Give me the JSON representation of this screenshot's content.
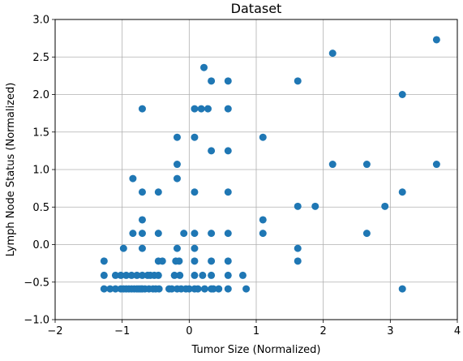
{
  "chart_data": {
    "type": "scatter",
    "title": "Dataset",
    "xlabel": "Tumor Size (Normalized)",
    "ylabel": "Lymph Node Status (Normalized)",
    "xlim": [
      -2,
      4
    ],
    "ylim": [
      -1.0,
      3.0
    ],
    "x_ticks": [
      -2,
      -1,
      0,
      1,
      2,
      3,
      4
    ],
    "x_tick_labels": [
      "−2",
      "−1",
      "0",
      "1",
      "2",
      "3",
      "4"
    ],
    "y_ticks": [
      -1.0,
      -0.5,
      0.0,
      0.5,
      1.0,
      1.5,
      2.0,
      2.5,
      3.0
    ],
    "y_tick_labels": [
      "−1.0",
      "−0.5",
      "0.0",
      "0.5",
      "1.0",
      "1.5",
      "2.0",
      "2.5",
      "3.0"
    ],
    "grid": true,
    "color": "#1f77b4",
    "series": [
      {
        "points": [
          [
            -1.27,
            -0.22
          ],
          [
            -1.27,
            -0.41
          ],
          [
            -1.27,
            -0.59
          ],
          [
            -1.18,
            -0.59
          ],
          [
            -1.1,
            -0.59
          ],
          [
            -1.1,
            -0.41
          ],
          [
            -1.02,
            -0.59
          ],
          [
            -1.02,
            -0.41
          ],
          [
            -0.98,
            -0.05
          ],
          [
            -0.98,
            -0.59
          ],
          [
            -0.94,
            -0.59
          ],
          [
            -0.94,
            -0.41
          ],
          [
            -0.9,
            -0.59
          ],
          [
            -0.86,
            -0.59
          ],
          [
            -0.86,
            -0.41
          ],
          [
            -0.84,
            0.88
          ],
          [
            -0.84,
            0.15
          ],
          [
            -0.82,
            -0.59
          ],
          [
            -0.78,
            -0.59
          ],
          [
            -0.78,
            -0.41
          ],
          [
            -0.75,
            -0.59
          ],
          [
            -0.72,
            -0.59
          ],
          [
            -0.7,
            1.81
          ],
          [
            -0.7,
            0.7
          ],
          [
            -0.7,
            0.33
          ],
          [
            -0.7,
            0.15
          ],
          [
            -0.7,
            -0.05
          ],
          [
            -0.7,
            -0.41
          ],
          [
            -0.7,
            -0.59
          ],
          [
            -0.66,
            -0.59
          ],
          [
            -0.62,
            -0.41
          ],
          [
            -0.6,
            -0.59
          ],
          [
            -0.58,
            -0.41
          ],
          [
            -0.54,
            -0.59
          ],
          [
            -0.52,
            -0.41
          ],
          [
            -0.5,
            -0.59
          ],
          [
            -0.46,
            0.7
          ],
          [
            -0.46,
            0.15
          ],
          [
            -0.46,
            -0.22
          ],
          [
            -0.46,
            -0.41
          ],
          [
            -0.45,
            -0.59
          ],
          [
            -0.4,
            -0.22
          ],
          [
            -0.3,
            -0.59
          ],
          [
            -0.26,
            -0.59
          ],
          [
            -0.22,
            -0.41
          ],
          [
            -0.2,
            -0.22
          ],
          [
            -0.18,
            1.43
          ],
          [
            -0.18,
            1.07
          ],
          [
            -0.18,
            0.88
          ],
          [
            -0.18,
            -0.05
          ],
          [
            -0.18,
            -0.59
          ],
          [
            -0.15,
            -0.22
          ],
          [
            -0.14,
            -0.41
          ],
          [
            -0.12,
            -0.59
          ],
          [
            -0.08,
            0.15
          ],
          [
            -0.05,
            -0.59
          ],
          [
            0.0,
            -0.59
          ],
          [
            0.08,
            1.81
          ],
          [
            0.08,
            1.43
          ],
          [
            0.08,
            0.7
          ],
          [
            0.08,
            0.15
          ],
          [
            0.08,
            -0.05
          ],
          [
            0.08,
            -0.22
          ],
          [
            0.08,
            -0.41
          ],
          [
            0.08,
            -0.59
          ],
          [
            0.13,
            -0.59
          ],
          [
            0.18,
            1.81
          ],
          [
            0.2,
            -0.41
          ],
          [
            0.22,
            2.36
          ],
          [
            0.23,
            -0.59
          ],
          [
            0.28,
            1.81
          ],
          [
            0.33,
            2.18
          ],
          [
            0.33,
            1.25
          ],
          [
            0.33,
            0.15
          ],
          [
            0.33,
            -0.22
          ],
          [
            0.33,
            -0.41
          ],
          [
            0.33,
            -0.59
          ],
          [
            0.36,
            -0.59
          ],
          [
            0.44,
            -0.59
          ],
          [
            0.58,
            2.18
          ],
          [
            0.58,
            1.81
          ],
          [
            0.58,
            1.25
          ],
          [
            0.58,
            0.7
          ],
          [
            0.58,
            0.15
          ],
          [
            0.58,
            -0.22
          ],
          [
            0.58,
            -0.41
          ],
          [
            0.58,
            -0.59
          ],
          [
            0.8,
            -0.41
          ],
          [
            0.85,
            -0.59
          ],
          [
            1.1,
            1.43
          ],
          [
            1.1,
            0.33
          ],
          [
            1.1,
            0.15
          ],
          [
            1.62,
            2.18
          ],
          [
            1.62,
            0.51
          ],
          [
            1.62,
            -0.05
          ],
          [
            1.62,
            -0.22
          ],
          [
            1.88,
            0.51
          ],
          [
            2.14,
            2.55
          ],
          [
            2.14,
            1.07
          ],
          [
            2.65,
            1.07
          ],
          [
            2.65,
            0.15
          ],
          [
            2.92,
            0.51
          ],
          [
            3.18,
            2.0
          ],
          [
            3.18,
            0.7
          ],
          [
            3.18,
            -0.59
          ],
          [
            3.69,
            2.73
          ],
          [
            3.69,
            1.07
          ]
        ]
      }
    ]
  }
}
